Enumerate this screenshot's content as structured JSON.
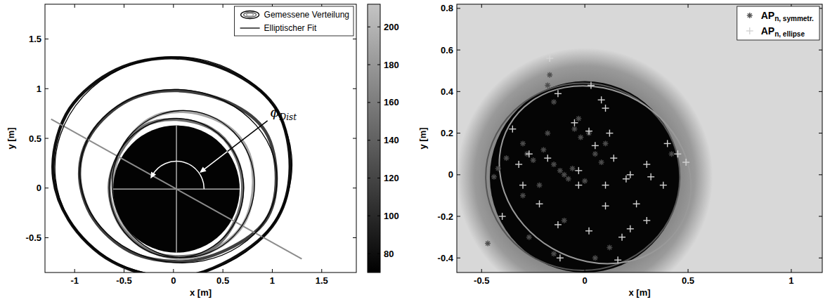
{
  "chart_data": [
    {
      "type": "contour",
      "xlabel": "x [m]",
      "ylabel": "y [m]",
      "xlim": [
        -1.3,
        1.85
      ],
      "xticks": [
        -1,
        -0.5,
        0,
        0.5,
        1,
        1.5
      ],
      "ylim": [
        -0.85,
        1.85
      ],
      "yticks": [
        -0.5,
        0,
        0.5,
        1,
        1.5
      ],
      "legend": "upper right",
      "series": [
        {
          "name": "Gemessene Verteilung",
          "type": "contour",
          "contours": [
            {
              "level": 80,
              "x": [
                1.18,
                1.05,
                0.62,
                0.02,
                -0.58,
                -1.05,
                -1.22,
                -1.06,
                -0.62,
                0.0,
                0.58,
                1.03
              ],
              "y": [
                0.2,
                0.78,
                1.15,
                1.31,
                1.19,
                0.8,
                0.22,
                -0.32,
                -0.74,
                -0.9,
                -0.72,
                -0.34
              ]
            },
            {
              "level": 115,
              "x": [
                1.04,
                0.93,
                0.56,
                0.04,
                -0.46,
                -0.83,
                -0.95,
                -0.81,
                -0.44,
                0.06,
                0.54,
                0.93
              ],
              "y": [
                0.1,
                0.57,
                0.86,
                0.98,
                0.88,
                0.55,
                0.13,
                -0.31,
                -0.64,
                -0.74,
                -0.62,
                -0.33
              ]
            },
            {
              "level": 190,
              "x": [
                0.81,
                0.73,
                0.47,
                0.1,
                -0.25,
                -0.52,
                -0.61,
                -0.53,
                -0.27,
                0.09,
                0.45,
                0.72
              ],
              "y": [
                0.05,
                0.42,
                0.67,
                0.77,
                0.69,
                0.4,
                0.03,
                -0.32,
                -0.61,
                -0.71,
                -0.6,
                -0.34
              ]
            },
            {
              "level": 150,
              "x": [
                0.7,
                0.61,
                0.38,
                0.03,
                -0.3,
                -0.55,
                -0.65,
                -0.56,
                -0.31,
                0.02,
                0.38,
                0.62
              ],
              "y": [
                0.01,
                0.36,
                0.6,
                0.69,
                0.62,
                0.34,
                0.01,
                -0.34,
                -0.6,
                -0.69,
                -0.62,
                -0.34
              ]
            }
          ]
        },
        {
          "name": "Elliptischer Fit",
          "type": "ellipse",
          "color": "#000000",
          "ellipses": [
            {
              "cx": 0.0,
              "cy": 0.22,
              "a": 1.2,
              "b": 1.1,
              "angle": 5
            },
            {
              "cx": 0.05,
              "cy": 0.12,
              "a": 1.0,
              "b": 0.87,
              "angle": -8
            },
            {
              "cx": 0.1,
              "cy": 0.04,
              "a": 0.72,
              "b": 0.74,
              "angle": 0
            },
            {
              "cx": 0.03,
              "cy": 0.0,
              "a": 0.68,
              "b": 0.7,
              "angle": 0
            }
          ]
        }
      ],
      "core": {
        "cx": 0.03,
        "cy": -0.01,
        "r": 0.64,
        "level": 72
      },
      "colorbar": {
        "lim": [
          70,
          212
        ],
        "ticks": [
          80,
          100,
          120,
          140,
          160,
          180,
          200
        ]
      },
      "annotation": {
        "text": "ϕ",
        "subscript": "Dist",
        "angle": 151,
        "x": 0.98,
        "y": 0.72
      }
    },
    {
      "type": "scatter",
      "xlabel": "x [m]",
      "ylabel": "y [m]",
      "xlim": [
        -0.62,
        1.15
      ],
      "xticks": [
        -0.5,
        0,
        0.5,
        1
      ],
      "ylim": [
        -0.47,
        0.82
      ],
      "yticks": [
        -0.4,
        -0.2,
        0,
        0.2,
        0.4,
        0.6,
        0.8
      ],
      "legend": "upper right",
      "aperture": {
        "cx": 0.0,
        "cy": -0.01,
        "r": 0.46,
        "outer_r": 0.62
      },
      "series": [
        {
          "name": "AP",
          "subscript": "n, symmetr.",
          "marker": "asterisk",
          "color": "#4d4d4d",
          "fit": {
            "cx": -0.01,
            "cy": -0.01,
            "a": 0.47,
            "b": 0.45,
            "angle": 0,
            "color": "#555555"
          },
          "x": [
            -0.47,
            -0.44,
            -0.42,
            -0.38,
            -0.3,
            -0.28,
            -0.25,
            -0.22,
            -0.2,
            -0.18,
            -0.15,
            -0.12,
            -0.1,
            -0.08,
            -0.06,
            -0.05,
            -0.03,
            -0.02,
            0.0,
            0.02,
            0.05,
            0.08,
            0.1,
            -0.17,
            -0.15,
            -0.1,
            -0.3,
            0.05,
            -0.15,
            -0.27,
            0.42,
            -0.18,
            0.12
          ],
          "y": [
            -0.33,
            -0.01,
            0.03,
            0.08,
            0.15,
            0.1,
            0.07,
            -0.05,
            0.12,
            0.2,
            0.05,
            0.02,
            0.0,
            -0.02,
            0.03,
            0.22,
            0.27,
            0.18,
            -0.03,
            0.2,
            0.1,
            0.06,
            0.15,
            0.48,
            0.35,
            -0.22,
            -0.1,
            -0.4,
            -0.38,
            -0.3,
            0.1,
            0.43,
            -0.35
          ]
        },
        {
          "name": "AP",
          "subscript": "n, ellipse",
          "marker": "plus",
          "color": "#d4d4d4",
          "fit": {
            "cx": 0.05,
            "cy": 0.0,
            "a": 0.48,
            "b": 0.41,
            "angle": -30,
            "color": "#9a9a9a"
          },
          "x": [
            -0.17,
            -0.13,
            0.03,
            0.1,
            0.08,
            -0.35,
            -0.27,
            -0.32,
            -0.18,
            -0.05,
            0.05,
            0.14,
            0.22,
            0.1,
            -0.03,
            -0.22,
            -0.13,
            -0.12,
            0.02,
            0.18,
            0.22,
            0.3,
            0.38,
            0.4,
            0.3,
            0.32,
            0.2,
            0.25,
            0.1,
            -0.4,
            -0.3,
            0.49,
            0.45,
            0.16,
            0.12,
            -0.03,
            0.02
          ],
          "y": [
            0.56,
            0.39,
            0.43,
            0.32,
            0.36,
            0.22,
            0.1,
            0.05,
            0.08,
            0.25,
            0.14,
            0.08,
            0.0,
            -0.05,
            -0.05,
            -0.14,
            -0.24,
            -0.4,
            -0.27,
            -0.3,
            -0.26,
            -0.22,
            -0.05,
            0.15,
            0.05,
            -0.01,
            -0.02,
            -0.14,
            -0.15,
            -0.2,
            -0.05,
            0.06,
            0.1,
            -0.41,
            0.2,
            0.02,
            0.21
          ]
        }
      ]
    }
  ]
}
